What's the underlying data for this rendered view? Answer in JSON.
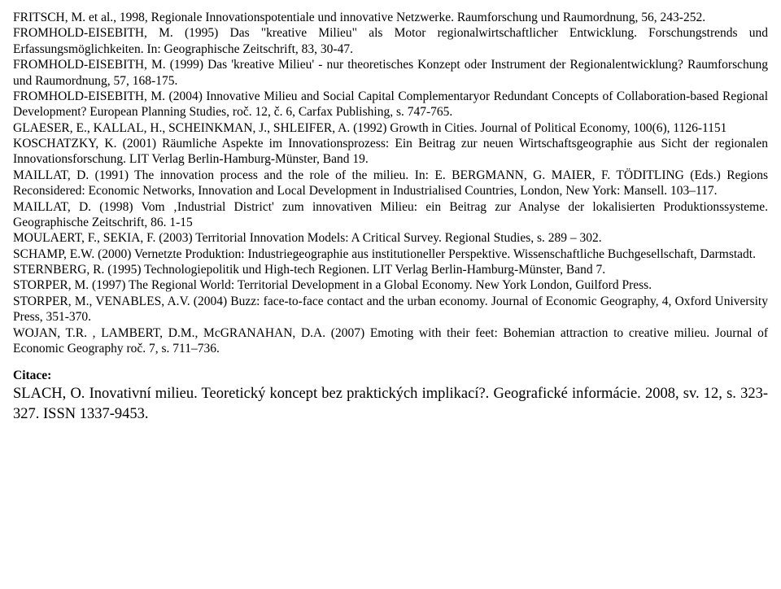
{
  "refs": [
    "FRITSCH, M. et al., 1998, Regionale Innovationspotentiale und innovative Netzwerke. Raumforschung und Raumordnung, 56, 243-252.",
    "FROMHOLD-EISEBITH, M. (1995) Das \"kreative Milieu\" als Motor regionalwirtschaftlicher Entwicklung. Forschungstrends und Erfassungsmöglichkeiten. In: Geographische Zeitschrift, 83, 30-47.",
    "FROMHOLD-EISEBITH, M. (1999) Das 'kreative Milieu' - nur theoretisches Konzept oder Instrument der Regionalentwicklung? Raumforschung und Raumordnung, 57, 168-175.",
    "FROMHOLD-EISEBITH, M. (2004) Innovative Milieu and Social Capital Complementaryor Redundant Concepts of Collaboration-based Regional Development? European Planning Studies, roč. 12, č. 6, Carfax Publishing, s. 747-765.",
    "GLAESER, E., KALLAL, H., SCHEINKMAN, J., SHLEIFER, A. (1992) Growth in Cities. Journal of Political Economy, 100(6), 1126-1151",
    "KOSCHATZKY, K. (2001) Räumliche Aspekte im Innovationsprozess: Ein Beitrag zur neuen Wirtschaftsgeographie aus Sicht der regionalen Innovationsforschung. LIT Verlag Berlin-Hamburg-Münster, Band 19.",
    "MAILLAT, D. (1991) The innovation process and the role of the milieu. In: E. BERGMANN, G. MAIER, F. TÖDITLING (Eds.) Regions Reconsidered: Economic Networks, Innovation and Local Development in Industrialised Countries, London, New York: Mansell. 103–117.",
    "MAILLAT, D. (1998) Vom ‚Industrial District' zum innovativen Milieu: ein Beitrag zur Analyse der lokalisierten Produktionssysteme. Geographische Zeitschrift, 86. 1-15",
    "MOULAERT, F., SEKIA, F. (2003) Territorial Innovation Models: A Critical Survey. Regional Studies, s. 289 – 302.",
    "SCHAMP, E.W. (2000) Vernetzte Produktion: Industriegeographie aus institutioneller Perspektive. Wissenschaftliche Buchgesellschaft, Darmstadt.",
    "STERNBERG, R. (1995) Technologiepolitik und High-tech Regionen. LIT Verlag Berlin-Hamburg-Münster, Band 7.",
    "STORPER, M. (1997) The Regional World: Territorial Development in a Global Economy. New York London, Guilford Press.",
    "STORPER, M., VENABLES, A.V. (2004) Buzz: face-to-face contact and the urban economy. Journal of Economic Geography, 4, Oxford University Press, 351-370.",
    "WOJAN, T.R. , LAMBERT, D.M., McGRANAHAN, D.A. (2007) Emoting with their feet: Bohemian attraction to creative milieu. Journal of Economic Geography roč. 7, s. 711–736."
  ],
  "citation_label": "Citace:",
  "citation_text": "SLACH, O. Inovativní milieu. Teoretický koncept bez praktických implikací?. Geografické informácie. 2008, sv. 12, s. 323-327. ISSN 1337-9453."
}
